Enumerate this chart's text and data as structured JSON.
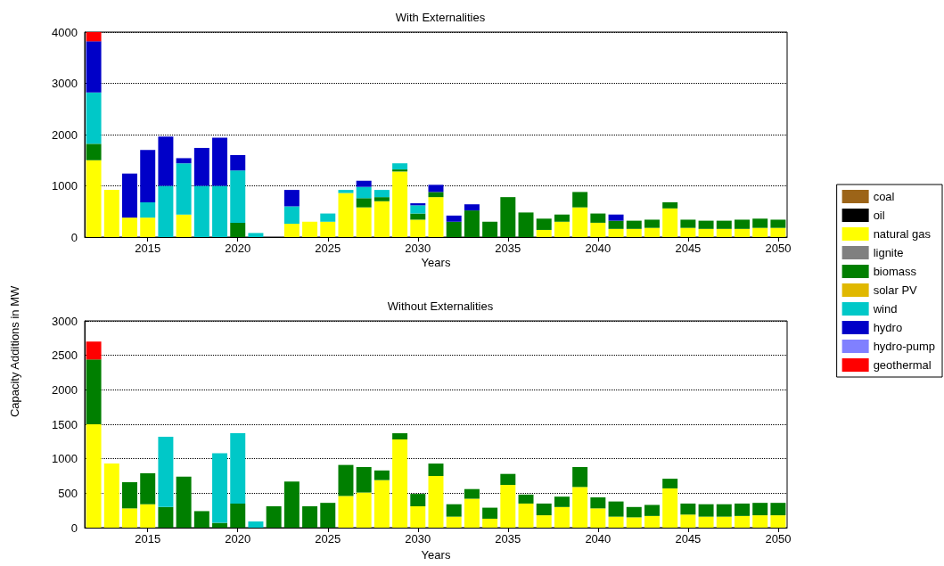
{
  "chart_data": [
    {
      "type": "bar",
      "title": "With Externalities",
      "xlabel": "Years",
      "ylabel": "Capacity Additions in MW",
      "stacked": true,
      "legend": "right",
      "grid": "y",
      "categories": [
        null,
        null,
        null,
        "2015",
        null,
        null,
        null,
        null,
        "2020",
        null,
        null,
        null,
        null,
        "2025",
        null,
        null,
        null,
        null,
        "2030",
        null,
        null,
        null,
        null,
        "2035",
        null,
        null,
        null,
        null,
        "2040",
        null,
        null,
        null,
        null,
        "2045",
        null,
        null,
        null,
        null,
        "2050"
      ],
      "ylim": [
        0,
        4000
      ],
      "yticks": [
        0,
        1000,
        2000,
        3000,
        4000
      ],
      "series": [
        {
          "name": "coal",
          "color": "#9c6418",
          "values": [
            null,
            null,
            null,
            null,
            null,
            null,
            null,
            null,
            null,
            null,
            null,
            null,
            null,
            null,
            null,
            null,
            null,
            null,
            null,
            null,
            null,
            null,
            null,
            null,
            null,
            null,
            null,
            null,
            null,
            null,
            null,
            null,
            null,
            null,
            null,
            null,
            null,
            null,
            null
          ]
        },
        {
          "name": "oil",
          "color": "#000000",
          "values": [
            null,
            null,
            null,
            null,
            null,
            null,
            null,
            null,
            null,
            null,
            null,
            null,
            null,
            null,
            null,
            null,
            null,
            null,
            null,
            null,
            null,
            null,
            null,
            null,
            null,
            null,
            null,
            null,
            null,
            null,
            null,
            null,
            null,
            null,
            null,
            null,
            null,
            null,
            null
          ]
        },
        {
          "name": "natural gas",
          "color": "#ffff00",
          "values": [
            1500,
            920,
            380,
            380,
            null,
            440,
            null,
            null,
            null,
            null,
            null,
            260,
            300,
            300,
            860,
            580,
            700,
            1280,
            340,
            780,
            null,
            null,
            null,
            null,
            null,
            140,
            300,
            580,
            280,
            160,
            160,
            180,
            560,
            180,
            160,
            160,
            160,
            180,
            180
          ]
        },
        {
          "name": "lignite",
          "color": "#808080",
          "values": [
            null,
            null,
            null,
            null,
            null,
            null,
            null,
            null,
            null,
            null,
            null,
            null,
            null,
            null,
            null,
            null,
            null,
            null,
            null,
            null,
            null,
            null,
            null,
            null,
            null,
            null,
            null,
            null,
            null,
            null,
            null,
            null,
            null,
            null,
            null,
            null,
            null,
            null,
            null
          ]
        },
        {
          "name": "biomass",
          "color": "#007f00",
          "values": [
            320,
            null,
            null,
            null,
            null,
            null,
            null,
            null,
            280,
            null,
            null,
            null,
            null,
            null,
            null,
            180,
            80,
            40,
            120,
            100,
            300,
            520,
            300,
            780,
            480,
            220,
            140,
            300,
            180,
            160,
            160,
            160,
            120,
            160,
            160,
            160,
            180,
            180,
            160
          ]
        },
        {
          "name": "solar PV",
          "color": "#e0b800",
          "values": [
            null,
            null,
            null,
            null,
            null,
            null,
            null,
            null,
            null,
            null,
            null,
            null,
            null,
            null,
            null,
            null,
            null,
            null,
            null,
            null,
            null,
            null,
            null,
            null,
            null,
            null,
            null,
            null,
            null,
            null,
            null,
            null,
            null,
            null,
            null,
            null,
            null,
            null,
            null
          ]
        },
        {
          "name": "wind",
          "color": "#00c8c8",
          "values": [
            1000,
            null,
            null,
            300,
            1000,
            1000,
            1000,
            1000,
            1020,
            80,
            null,
            340,
            null,
            160,
            60,
            220,
            140,
            120,
            160,
            null,
            null,
            null,
            null,
            null,
            null,
            null,
            null,
            null,
            null,
            null,
            null,
            null,
            null,
            null,
            null,
            null,
            null,
            null,
            null
          ]
        },
        {
          "name": "hydro",
          "color": "#0000c8",
          "values": [
            1000,
            null,
            860,
            1020,
            960,
            100,
            740,
            940,
            300,
            null,
            null,
            320,
            null,
            null,
            null,
            120,
            null,
            null,
            40,
            140,
            120,
            120,
            null,
            null,
            null,
            null,
            null,
            null,
            null,
            120,
            null,
            null,
            null,
            null,
            null,
            null,
            null,
            null,
            null
          ]
        },
        {
          "name": "hydro-pump",
          "color": "#8080ff",
          "values": [
            null,
            null,
            null,
            null,
            null,
            null,
            null,
            null,
            null,
            null,
            null,
            null,
            null,
            null,
            null,
            null,
            null,
            null,
            null,
            null,
            null,
            null,
            null,
            null,
            null,
            null,
            null,
            null,
            null,
            null,
            null,
            null,
            null,
            null,
            null,
            null,
            null,
            null,
            null
          ]
        },
        {
          "name": "geothermal",
          "color": "#ff0000",
          "values": [
            180,
            null,
            null,
            null,
            null,
            null,
            null,
            null,
            null,
            null,
            null,
            null,
            null,
            null,
            null,
            null,
            null,
            null,
            null,
            null,
            null,
            null,
            null,
            null,
            null,
            null,
            null,
            null,
            null,
            null,
            null,
            null,
            null,
            null,
            null,
            null,
            null,
            null,
            null
          ]
        }
      ]
    },
    {
      "type": "bar",
      "title": "Without Externalities",
      "xlabel": "Years",
      "stacked": true,
      "grid": "y",
      "categories": [
        null,
        null,
        null,
        "2015",
        null,
        null,
        null,
        null,
        "2020",
        null,
        null,
        null,
        null,
        "2025",
        null,
        null,
        null,
        null,
        "2030",
        null,
        null,
        null,
        null,
        "2035",
        null,
        null,
        null,
        null,
        "2040",
        null,
        null,
        null,
        null,
        "2045",
        null,
        null,
        null,
        null,
        "2050"
      ],
      "ylim": [
        0,
        3000
      ],
      "yticks": [
        0,
        500,
        1000,
        1500,
        2000,
        2500,
        3000
      ],
      "series": [
        {
          "color": "#ffff00",
          "values": [
            1500,
            930,
            280,
            340,
            null,
            null,
            null,
            null,
            null,
            null,
            null,
            null,
            null,
            null,
            460,
            510,
            690,
            1280,
            310,
            750,
            160,
            420,
            130,
            620,
            350,
            180,
            300,
            590,
            280,
            160,
            150,
            170,
            570,
            190,
            160,
            160,
            170,
            180,
            180
          ]
        },
        {
          "color": "#007f00",
          "values": [
            940,
            null,
            380,
            450,
            300,
            740,
            240,
            70,
            350,
            null,
            310,
            670,
            310,
            360,
            450,
            370,
            140,
            90,
            180,
            180,
            180,
            140,
            160,
            160,
            130,
            170,
            150,
            290,
            160,
            220,
            150,
            160,
            140,
            160,
            180,
            180,
            180,
            180,
            180
          ]
        },
        {
          "color": "#00c8c8",
          "values": [
            null,
            null,
            null,
            null,
            1020,
            null,
            null,
            1010,
            1020,
            90,
            null,
            null,
            null,
            null,
            null,
            null,
            null,
            null,
            null,
            null,
            null,
            null,
            null,
            null,
            null,
            null,
            null,
            null,
            null,
            null,
            null,
            null,
            null,
            null,
            null,
            null,
            null,
            null,
            null
          ]
        },
        {
          "color": "#ff0000",
          "values": [
            260,
            null,
            null,
            null,
            null,
            null,
            null,
            null,
            null,
            null,
            null,
            null,
            null,
            null,
            null,
            null,
            null,
            null,
            null,
            null,
            null,
            null,
            null,
            null,
            null,
            null,
            null,
            null,
            null,
            null,
            null,
            null,
            null,
            null,
            null,
            null,
            null,
            null,
            null
          ]
        }
      ]
    }
  ]
}
